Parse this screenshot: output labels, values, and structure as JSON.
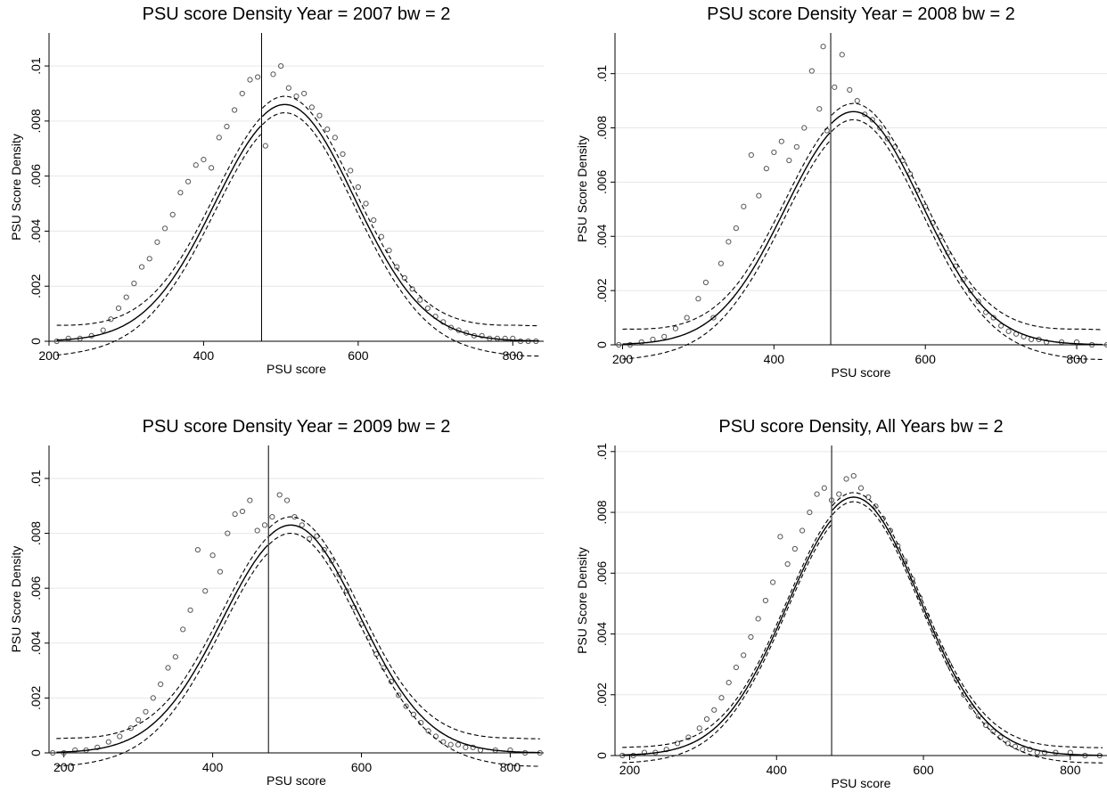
{
  "colors": {
    "background": "#ffffff",
    "grid": "#e6e6e6",
    "line": "#000000",
    "marker": "#555555"
  },
  "chart_data": [
    {
      "type": "scatter",
      "title": "PSU score Density Year = 2007 bw = 2",
      "xlabel": "PSU score",
      "ylabel": "PSU Score Density",
      "xlim": [
        200,
        840
      ],
      "ylim": [
        0,
        0.0112
      ],
      "xticks": [
        200,
        400,
        600,
        800
      ],
      "xtick_labels": [
        "200",
        "400",
        "600",
        "800"
      ],
      "yticks": [
        0,
        0.002,
        0.004,
        0.006,
        0.008,
        0.01
      ],
      "ytick_labels": [
        "0",
        ".002",
        ".004",
        ".006",
        ".008",
        ".01"
      ],
      "grid": true,
      "cutoff": 475,
      "fit": {
        "peak": 0.0086,
        "sigma": 90,
        "band": 0.0003,
        "tail_band": 0.00055
      },
      "series": [
        {
          "x": [
            210,
            225,
            240,
            255,
            270,
            280,
            290,
            300,
            310,
            320,
            330,
            340,
            350,
            360,
            370,
            380,
            390,
            400,
            410,
            420,
            430,
            440,
            450,
            460,
            470,
            480,
            490,
            500,
            510,
            520,
            530,
            540,
            550,
            560,
            570,
            580,
            590,
            600,
            610,
            620,
            630,
            640,
            650,
            660,
            670,
            680,
            690,
            700,
            710,
            720,
            730,
            740,
            750,
            760,
            770,
            780,
            790,
            800,
            810,
            820,
            830
          ],
          "y": [
            0.0,
            0.0001,
            0.0001,
            0.0002,
            0.0004,
            0.0008,
            0.0012,
            0.0016,
            0.0021,
            0.0027,
            0.003,
            0.0036,
            0.0041,
            0.0046,
            0.0054,
            0.0058,
            0.0064,
            0.0066,
            0.0063,
            0.0074,
            0.0078,
            0.0084,
            0.009,
            0.0095,
            0.0096,
            0.0071,
            0.0097,
            0.01,
            0.0092,
            0.0089,
            0.009,
            0.0085,
            0.0082,
            0.0077,
            0.0074,
            0.0068,
            0.0062,
            0.0056,
            0.005,
            0.0044,
            0.0038,
            0.0033,
            0.0027,
            0.0023,
            0.0019,
            0.0015,
            0.0012,
            0.0009,
            0.0007,
            0.0005,
            0.0004,
            0.0003,
            0.0002,
            0.0002,
            0.0001,
            0.0001,
            0.0001,
            0.0001,
            0.0,
            0.0,
            0.0
          ]
        }
      ]
    },
    {
      "type": "scatter",
      "title": "PSU score Density Year = 2008 bw = 2",
      "xlabel": "PSU score",
      "ylabel": "PSU Score Density",
      "xlim": [
        190,
        840
      ],
      "ylim": [
        0,
        0.0115
      ],
      "xticks": [
        200,
        400,
        600,
        800
      ],
      "xtick_labels": [
        "200",
        "400",
        "600",
        "800"
      ],
      "yticks": [
        0,
        0.002,
        0.004,
        0.006,
        0.008,
        0.01
      ],
      "ytick_labels": [
        "0",
        ".002",
        ".004",
        ".006",
        ".008",
        ".01"
      ],
      "grid": true,
      "cutoff": 475,
      "fit": {
        "peak": 0.0086,
        "sigma": 90,
        "band": 0.0003,
        "tail_band": 0.00055
      },
      "series": [
        {
          "x": [
            195,
            210,
            225,
            240,
            255,
            270,
            285,
            300,
            310,
            320,
            330,
            340,
            350,
            360,
            370,
            380,
            390,
            400,
            410,
            420,
            430,
            440,
            450,
            460,
            465,
            470,
            480,
            490,
            500,
            510,
            520,
            530,
            540,
            550,
            560,
            570,
            580,
            590,
            600,
            610,
            620,
            630,
            640,
            650,
            660,
            670,
            680,
            690,
            700,
            710,
            720,
            730,
            740,
            750,
            760,
            780,
            800,
            820,
            840
          ],
          "y": [
            0.0,
            0.0,
            0.0001,
            0.0002,
            0.0003,
            0.0006,
            0.001,
            0.0017,
            0.0023,
            0.001,
            0.003,
            0.0038,
            0.0043,
            0.0051,
            0.007,
            0.0055,
            0.0065,
            0.0071,
            0.0075,
            0.0068,
            0.0073,
            0.008,
            0.0101,
            0.0087,
            0.011,
            0.0079,
            0.0095,
            0.0107,
            0.0094,
            0.009,
            0.0085,
            0.0083,
            0.008,
            0.0076,
            0.0073,
            0.0068,
            0.0063,
            0.0057,
            0.0051,
            0.0045,
            0.004,
            0.0034,
            0.0029,
            0.0024,
            0.002,
            0.0016,
            0.0012,
            0.001,
            0.0007,
            0.0005,
            0.0004,
            0.0003,
            0.0002,
            0.0002,
            0.0001,
            0.0001,
            0.0001,
            0.0,
            0.0
          ]
        }
      ]
    },
    {
      "type": "scatter",
      "title": "PSU score Density Year = 2009 bw = 2",
      "xlabel": "PSU score",
      "ylabel": "PSU Score Density",
      "xlim": [
        180,
        845
      ],
      "ylim": [
        0,
        0.0112
      ],
      "xticks": [
        200,
        400,
        600,
        800
      ],
      "xtick_labels": [
        "200",
        "400",
        "600",
        "800"
      ],
      "yticks": [
        0,
        0.002,
        0.004,
        0.006,
        0.008,
        0.01
      ],
      "ytick_labels": [
        "0",
        ".002",
        ".004",
        ".006",
        ".008",
        ".01"
      ],
      "grid": true,
      "cutoff": 475,
      "fit": {
        "peak": 0.0083,
        "sigma": 92,
        "band": 0.0003,
        "tail_band": 0.0005
      },
      "series": [
        {
          "x": [
            185,
            200,
            215,
            230,
            245,
            260,
            275,
            290,
            300,
            310,
            320,
            330,
            340,
            350,
            360,
            370,
            380,
            390,
            400,
            410,
            420,
            430,
            440,
            450,
            460,
            470,
            480,
            490,
            500,
            510,
            520,
            530,
            540,
            550,
            560,
            570,
            580,
            590,
            600,
            610,
            620,
            630,
            640,
            650,
            660,
            670,
            680,
            690,
            700,
            710,
            720,
            730,
            740,
            750,
            760,
            780,
            800,
            820,
            840
          ],
          "y": [
            0.0,
            0.0,
            0.0001,
            0.0001,
            0.0002,
            0.0004,
            0.0006,
            0.0009,
            0.0012,
            0.0015,
            0.002,
            0.0025,
            0.0031,
            0.0035,
            0.0045,
            0.0052,
            0.0074,
            0.0059,
            0.0072,
            0.0066,
            0.008,
            0.0087,
            0.0088,
            0.0092,
            0.0081,
            0.0083,
            0.0086,
            0.0094,
            0.0092,
            0.0086,
            0.0083,
            0.0078,
            0.0079,
            0.0074,
            0.007,
            0.0065,
            0.0059,
            0.0053,
            0.0047,
            0.0042,
            0.0036,
            0.0031,
            0.0026,
            0.0021,
            0.0017,
            0.0014,
            0.0011,
            0.0008,
            0.0006,
            0.0004,
            0.0003,
            0.0003,
            0.0002,
            0.0002,
            0.0001,
            0.0001,
            0.0001,
            0.0,
            0.0
          ]
        }
      ]
    },
    {
      "type": "scatter",
      "title": "PSU score Density, All Years bw = 2",
      "xlabel": "PSU score",
      "ylabel": "PSU Score Density",
      "xlim": [
        180,
        850
      ],
      "ylim": [
        0,
        0.0102
      ],
      "xticks": [
        200,
        400,
        600,
        800
      ],
      "xtick_labels": [
        "200",
        "400",
        "600",
        "800"
      ],
      "yticks": [
        0,
        0.002,
        0.004,
        0.006,
        0.008,
        0.01
      ],
      "ytick_labels": [
        "0",
        ".002",
        ".004",
        ".006",
        ".008",
        ".01"
      ],
      "grid": true,
      "cutoff": 475,
      "fit": {
        "peak": 0.0085,
        "sigma": 90,
        "band": 0.00015,
        "tail_band": 0.00025
      },
      "series": [
        {
          "x": [
            190,
            205,
            220,
            235,
            250,
            265,
            280,
            295,
            305,
            315,
            325,
            335,
            345,
            355,
            365,
            375,
            385,
            395,
            405,
            415,
            425,
            435,
            445,
            455,
            465,
            475,
            485,
            495,
            505,
            515,
            525,
            535,
            545,
            555,
            565,
            575,
            585,
            595,
            605,
            615,
            625,
            635,
            645,
            655,
            665,
            675,
            685,
            695,
            705,
            715,
            725,
            735,
            745,
            755,
            765,
            780,
            800,
            820,
            840
          ],
          "y": [
            0.0,
            0.0,
            0.0001,
            0.0001,
            0.0002,
            0.0004,
            0.0006,
            0.0009,
            0.0012,
            0.0015,
            0.0019,
            0.0024,
            0.0029,
            0.0033,
            0.0039,
            0.0045,
            0.0051,
            0.0057,
            0.0072,
            0.0063,
            0.0068,
            0.0074,
            0.008,
            0.0086,
            0.0088,
            0.0084,
            0.0086,
            0.0091,
            0.0092,
            0.0088,
            0.0085,
            0.0082,
            0.0078,
            0.0074,
            0.0069,
            0.0064,
            0.0058,
            0.0052,
            0.0046,
            0.004,
            0.0035,
            0.003,
            0.0025,
            0.002,
            0.0016,
            0.0013,
            0.001,
            0.0008,
            0.0006,
            0.0004,
            0.0003,
            0.0002,
            0.0002,
            0.0001,
            0.0001,
            0.0001,
            0.0001,
            0.0,
            0.0
          ]
        }
      ]
    }
  ]
}
